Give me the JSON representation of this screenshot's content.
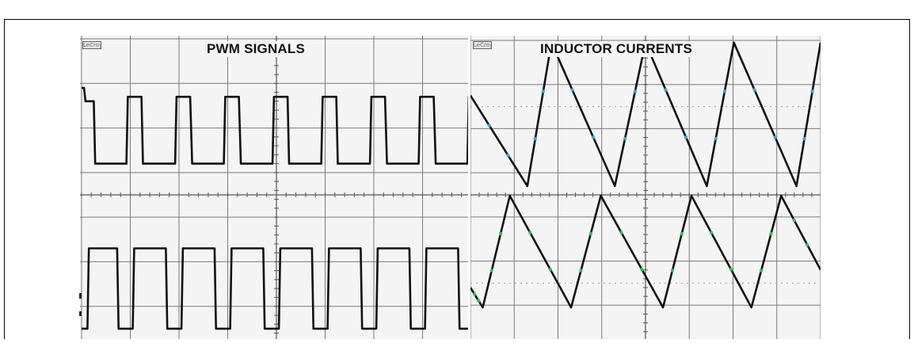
{
  "panels": [
    {
      "title": "PWM SIGNALS",
      "logo": "LeCroy"
    },
    {
      "title": "INDUCTOR CURRENTS",
      "logo": "LeCroy"
    }
  ],
  "colors": {
    "trace": "#111111",
    "grid": "#7a7a7a",
    "dot_grid": "#9a9a9a",
    "panel_bg": "#f4f4f4",
    "marker_blue": "#35a9d8",
    "marker_green": "#29c84a"
  },
  "chart_data": [
    {
      "type": "line",
      "title": "PWM SIGNALS",
      "grid": true,
      "divisions": {
        "x": 8,
        "y": 7
      },
      "ylim": [
        0,
        7
      ],
      "series": [
        {
          "x": [
            0,
            0.05,
            0.08,
            0.25,
            0.28,
            0.92,
            0.95,
            1.23,
            1.26,
            1.92,
            1.95,
            2.23,
            2.27,
            2.92,
            2.95,
            3.23,
            3.27,
            3.92,
            3.95,
            4.23,
            4.26,
            4.92,
            4.95,
            5.23,
            5.26,
            5.92,
            5.95,
            6.23,
            6.27,
            6.92,
            6.95,
            7.23,
            7.27,
            7.92,
            7.95,
            8.0
          ],
          "y": [
            5.9,
            5.9,
            5.6,
            5.6,
            4.2,
            4.2,
            5.7,
            5.7,
            4.2,
            4.2,
            5.7,
            5.7,
            4.2,
            4.2,
            5.7,
            5.7,
            4.2,
            4.2,
            5.7,
            5.7,
            4.2,
            4.2,
            5.7,
            5.7,
            4.2,
            4.2,
            5.7,
            5.7,
            4.2,
            4.2,
            5.7,
            5.7,
            4.2,
            4.2,
            5.7,
            5.7
          ]
        },
        {
          "x": [
            0,
            0.12,
            0.15,
            0.73,
            0.76,
            1.05,
            1.08,
            1.73,
            1.76,
            2.05,
            2.08,
            2.73,
            2.76,
            3.05,
            3.08,
            3.73,
            3.76,
            4.05,
            4.08,
            4.73,
            4.76,
            5.05,
            5.08,
            5.73,
            5.76,
            6.05,
            6.08,
            6.73,
            6.76,
            7.05,
            7.08,
            7.73,
            7.76,
            8.0
          ],
          "y": [
            0.5,
            0.5,
            2.3,
            2.3,
            0.5,
            0.5,
            2.3,
            2.3,
            0.5,
            0.5,
            2.3,
            2.3,
            0.5,
            0.5,
            2.3,
            2.3,
            0.5,
            0.5,
            2.3,
            2.3,
            0.5,
            0.5,
            2.3,
            2.3,
            0.5,
            0.5,
            2.3,
            2.3,
            0.5,
            0.5,
            2.3,
            2.3,
            0.5,
            0.5
          ]
        }
      ]
    },
    {
      "type": "line",
      "title": "INDUCTOR CURRENTS",
      "grid": true,
      "divisions": {
        "x": 8,
        "y": 7
      },
      "ylim": [
        0,
        7
      ],
      "series": [
        {
          "x": [
            0,
            1.3,
            1.85,
            3.3,
            4.0,
            5.4,
            6.02,
            7.45,
            8.0
          ],
          "y": [
            5.75,
            3.7,
            6.95,
            3.7,
            6.95,
            3.7,
            6.95,
            3.7,
            6.95
          ]
        },
        {
          "x": [
            0,
            0.28,
            0.9,
            2.3,
            2.98,
            4.4,
            5.05,
            6.42,
            7.1,
            8.0
          ],
          "y": [
            1.4,
            0.95,
            3.48,
            0.95,
            3.48,
            0.95,
            3.48,
            0.95,
            3.48,
            1.8
          ]
        }
      ]
    }
  ]
}
